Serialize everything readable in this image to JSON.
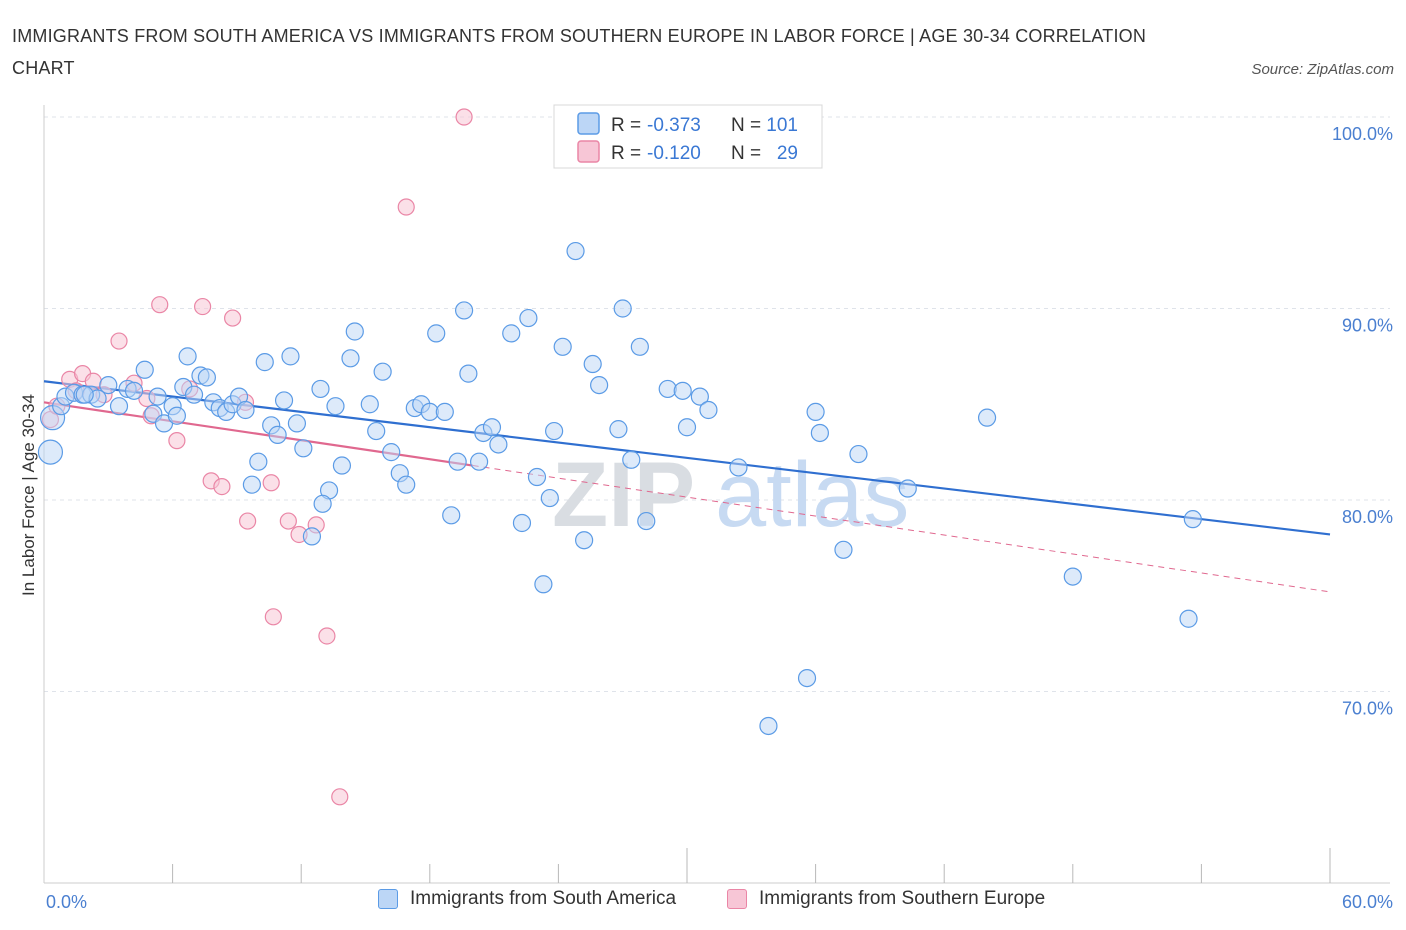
{
  "title": "IMMIGRANTS FROM SOUTH AMERICA VS IMMIGRANTS FROM SOUTHERN EUROPE IN LABOR FORCE | AGE 30-34 CORRELATION CHART",
  "source": "Source: ZipAtlas.com",
  "watermark": {
    "zip": "ZIP",
    "atlas": "atlas"
  },
  "legend_box": {
    "rows": [
      {
        "r_label": "R =",
        "r_value": "-0.373",
        "n_label": "N =",
        "n_value": "101"
      },
      {
        "r_label": "R =",
        "r_value": "-0.120",
        "n_label": "N =",
        "n_value": "29"
      }
    ]
  },
  "bottom_legend": [
    {
      "label": "Immigrants from South America"
    },
    {
      "label": "Immigrants from Southern Europe"
    }
  ],
  "colors": {
    "blue": "#5b9be6",
    "blue_fill": "#bcd6f6",
    "blue_line": "#2f6fd0",
    "pink": "#ea86a6",
    "pink_fill": "#f7c6d6",
    "pink_line": "#e0688f",
    "grid": "#dfe3ea",
    "tick_text": "#4a7fd0"
  },
  "chart_data": {
    "type": "scatter",
    "title": "IMMIGRANTS FROM SOUTH AMERICA VS IMMIGRANTS FROM SOUTHERN EUROPE IN LABOR FORCE | AGE 30-34 CORRELATION CHART",
    "xlabel": "",
    "ylabel": "In Labor Force | Age 30-34",
    "xlim": [
      0,
      60
    ],
    "ylim": [
      60,
      100
    ],
    "x_tick_labels": [
      "0.0%",
      "60.0%"
    ],
    "y_ticks": [
      70,
      80,
      90,
      100
    ],
    "y_tick_labels": [
      "70.0%",
      "80.0%",
      "90.0%",
      "100.0%"
    ],
    "grid": true,
    "legend_position": "top-center",
    "series": [
      {
        "name": "Immigrants from South America",
        "color": "#5b9be6",
        "trend": {
          "x": [
            0,
            60
          ],
          "y": [
            86.2,
            78.2
          ]
        },
        "points": [
          [
            0.3,
            82.5
          ],
          [
            0.4,
            84.3
          ],
          [
            0.8,
            84.9
          ],
          [
            1.0,
            85.4
          ],
          [
            1.4,
            85.6
          ],
          [
            1.8,
            85.5
          ],
          [
            2.2,
            85.5
          ],
          [
            2.5,
            85.3
          ],
          [
            3.0,
            86.0
          ],
          [
            3.5,
            84.9
          ],
          [
            3.9,
            85.8
          ],
          [
            4.2,
            85.7
          ],
          [
            4.7,
            86.8
          ],
          [
            5.1,
            84.5
          ],
          [
            5.3,
            85.4
          ],
          [
            5.6,
            84.0
          ],
          [
            6.0,
            84.9
          ],
          [
            6.2,
            84.4
          ],
          [
            6.5,
            85.9
          ],
          [
            6.7,
            87.5
          ],
          [
            7.0,
            85.5
          ],
          [
            7.3,
            86.5
          ],
          [
            7.6,
            86.4
          ],
          [
            7.9,
            85.1
          ],
          [
            8.2,
            84.8
          ],
          [
            8.5,
            84.6
          ],
          [
            8.8,
            85.0
          ],
          [
            9.1,
            85.4
          ],
          [
            9.4,
            84.7
          ],
          [
            9.7,
            80.8
          ],
          [
            10.0,
            82.0
          ],
          [
            10.3,
            87.2
          ],
          [
            10.6,
            83.9
          ],
          [
            10.9,
            83.4
          ],
          [
            11.2,
            85.2
          ],
          [
            11.5,
            87.5
          ],
          [
            11.8,
            84.0
          ],
          [
            12.1,
            82.7
          ],
          [
            12.5,
            78.1
          ],
          [
            12.9,
            85.8
          ],
          [
            13.3,
            80.5
          ],
          [
            13.6,
            84.9
          ],
          [
            13.9,
            81.8
          ],
          [
            14.3,
            87.4
          ],
          [
            14.5,
            88.8
          ],
          [
            15.2,
            85.0
          ],
          [
            15.5,
            83.6
          ],
          [
            15.8,
            86.7
          ],
          [
            16.2,
            82.5
          ],
          [
            16.6,
            81.4
          ],
          [
            16.9,
            80.8
          ],
          [
            17.3,
            84.8
          ],
          [
            17.6,
            85.0
          ],
          [
            18.0,
            84.6
          ],
          [
            18.3,
            88.7
          ],
          [
            18.7,
            84.6
          ],
          [
            19.0,
            79.2
          ],
          [
            19.3,
            82.0
          ],
          [
            19.6,
            89.9
          ],
          [
            19.8,
            86.6
          ],
          [
            20.5,
            83.5
          ],
          [
            20.9,
            83.8
          ],
          [
            21.2,
            82.9
          ],
          [
            21.8,
            88.7
          ],
          [
            22.3,
            78.8
          ],
          [
            22.6,
            89.5
          ],
          [
            23.0,
            81.2
          ],
          [
            23.3,
            75.6
          ],
          [
            23.6,
            80.1
          ],
          [
            23.8,
            83.6
          ],
          [
            24.2,
            88.0
          ],
          [
            24.8,
            93.0
          ],
          [
            25.2,
            77.9
          ],
          [
            25.6,
            87.1
          ],
          [
            25.9,
            86.0
          ],
          [
            26.2,
            100.0
          ],
          [
            26.8,
            83.7
          ],
          [
            27.0,
            90.0
          ],
          [
            27.4,
            82.1
          ],
          [
            27.8,
            88.0
          ],
          [
            28.1,
            78.9
          ],
          [
            29.1,
            85.8
          ],
          [
            29.8,
            85.7
          ],
          [
            30.0,
            83.8
          ],
          [
            30.6,
            85.4
          ],
          [
            31.0,
            84.7
          ],
          [
            32.4,
            81.7
          ],
          [
            33.8,
            68.2
          ],
          [
            35.6,
            70.7
          ],
          [
            36.0,
            84.6
          ],
          [
            36.2,
            83.5
          ],
          [
            37.3,
            77.4
          ],
          [
            38.0,
            82.4
          ],
          [
            40.3,
            80.6
          ],
          [
            44.0,
            84.3
          ],
          [
            48.0,
            76.0
          ],
          [
            53.4,
            73.8
          ],
          [
            53.6,
            79.0
          ],
          [
            1.9,
            85.5
          ],
          [
            13.0,
            79.8
          ],
          [
            20.3,
            82.0
          ]
        ]
      },
      {
        "name": "Immigrants from Southern Europe",
        "color": "#ea86a6",
        "trend": {
          "x": [
            0,
            20
          ],
          "y": [
            85.1,
            81.8
          ]
        },
        "trend_dashed": {
          "x": [
            20,
            60
          ],
          "y": [
            81.8,
            75.2
          ]
        },
        "points": [
          [
            0.3,
            84.2
          ],
          [
            0.6,
            84.9
          ],
          [
            1.2,
            86.3
          ],
          [
            1.5,
            85.7
          ],
          [
            1.8,
            86.6
          ],
          [
            2.3,
            86.2
          ],
          [
            2.8,
            85.5
          ],
          [
            3.5,
            88.3
          ],
          [
            4.2,
            86.1
          ],
          [
            4.8,
            85.3
          ],
          [
            5.0,
            84.4
          ],
          [
            5.4,
            90.2
          ],
          [
            6.2,
            83.1
          ],
          [
            6.8,
            85.8
          ],
          [
            7.4,
            90.1
          ],
          [
            7.8,
            81.0
          ],
          [
            8.3,
            80.7
          ],
          [
            8.8,
            89.5
          ],
          [
            9.4,
            85.1
          ],
          [
            9.5,
            78.9
          ],
          [
            10.6,
            80.9
          ],
          [
            10.7,
            73.9
          ],
          [
            11.4,
            78.9
          ],
          [
            11.9,
            78.2
          ],
          [
            12.7,
            78.7
          ],
          [
            13.2,
            72.9
          ],
          [
            13.8,
            64.5
          ],
          [
            16.9,
            95.3
          ],
          [
            19.6,
            100.0
          ]
        ]
      }
    ]
  }
}
